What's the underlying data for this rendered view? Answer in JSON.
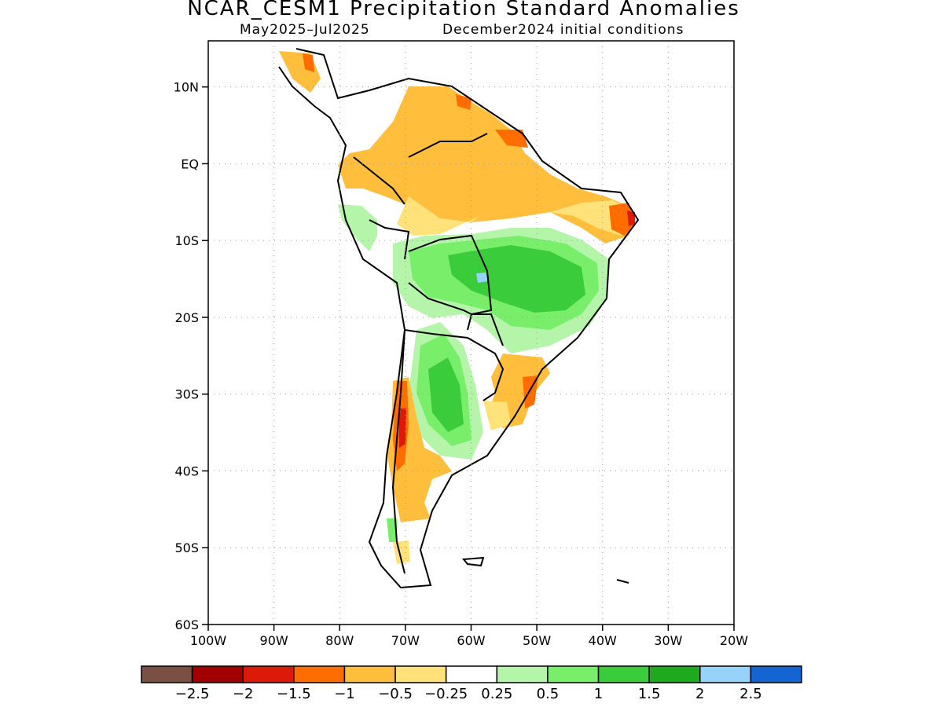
{
  "title": "NCAR_CESM1 Precipitation Standard Anomalies",
  "subtitle_left": "May2025–Jul2025",
  "subtitle_right": "December2024 initial conditions",
  "map": {
    "lat_labels": [
      {
        "label": "10N",
        "lat": 10
      },
      {
        "label": "EQ",
        "lat": 0
      },
      {
        "label": "10S",
        "lat": -10
      },
      {
        "label": "20S",
        "lat": -20
      },
      {
        "label": "30S",
        "lat": -30
      },
      {
        "label": "40S",
        "lat": -40
      },
      {
        "label": "50S",
        "lat": -50
      },
      {
        "label": "60S",
        "lat": -60
      }
    ],
    "lon_labels": [
      {
        "label": "100W",
        "lon": -100
      },
      {
        "label": "90W",
        "lon": -90
      },
      {
        "label": "80W",
        "lon": -80
      },
      {
        "label": "70W",
        "lon": -70
      },
      {
        "label": "60W",
        "lon": -60
      },
      {
        "label": "50W",
        "lon": -50
      },
      {
        "label": "40W",
        "lon": -40
      },
      {
        "label": "30W",
        "lon": -30
      },
      {
        "label": "20W",
        "lon": -20
      }
    ],
    "lon_range": [
      -100,
      -20
    ],
    "lat_range": [
      -60,
      16
    ],
    "grid": true
  },
  "colorbar": {
    "colors": [
      "#7a5045",
      "#a00000",
      "#dc1a0a",
      "#ff6c00",
      "#ffbe3c",
      "#ffe27a",
      "#ffffff",
      "#b4f5aa",
      "#78ee6a",
      "#3acc3a",
      "#1eaa1e",
      "#96d2fa",
      "#1464d2"
    ],
    "labels": [
      "−2.5",
      "−2",
      "−1.5",
      "−1",
      "−0.5",
      "−0.25",
      "0.25",
      "0.5",
      "1",
      "1.5",
      "2",
      "2.5"
    ]
  }
}
